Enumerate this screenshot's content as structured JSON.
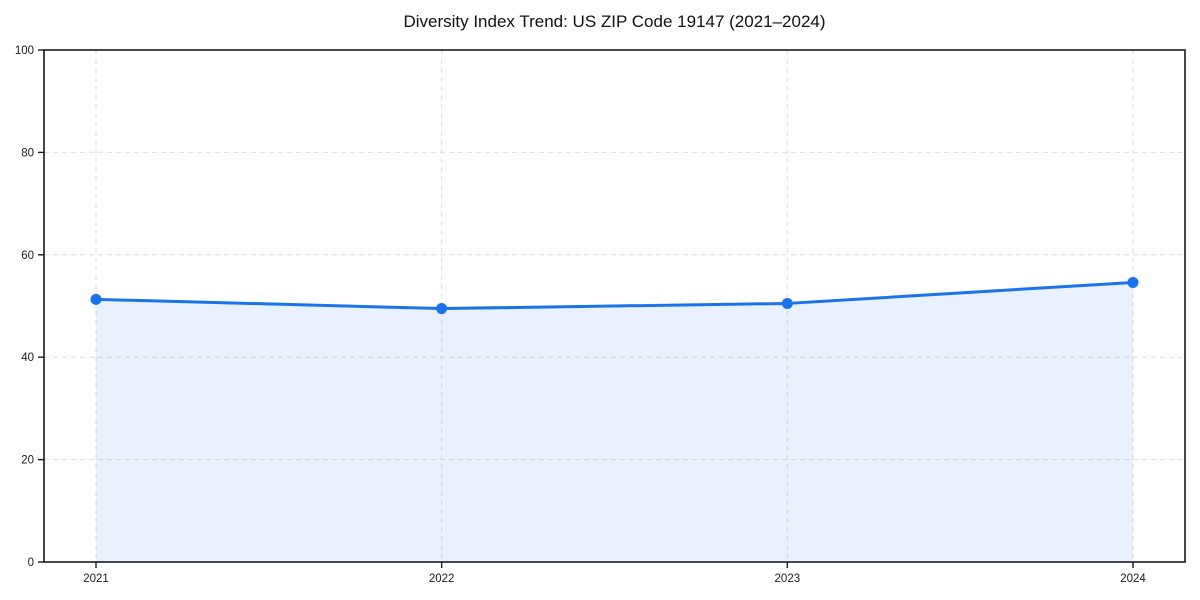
{
  "chart_data": {
    "type": "area",
    "title": "Diversity Index Trend: US ZIP Code 19147 (2021–2024)",
    "categories": [
      "2021",
      "2022",
      "2023",
      "2024"
    ],
    "series": [
      {
        "name": "Diversity Index",
        "values": [
          51.3,
          49.5,
          50.5,
          54.6
        ]
      }
    ],
    "xlabel": "",
    "ylabel": "",
    "ylim": [
      0,
      100
    ],
    "yticks": [
      0,
      20,
      40,
      60,
      80,
      100
    ],
    "grid": "both-dashed",
    "legend_position": "none",
    "colors": {
      "line": "#1a73e8",
      "marker": "#1a73e8",
      "fill": "rgba(26,115,232,0.10)",
      "grid": "#dedede",
      "axis": "#1a1a1a",
      "text": "#1a1a1a"
    }
  }
}
